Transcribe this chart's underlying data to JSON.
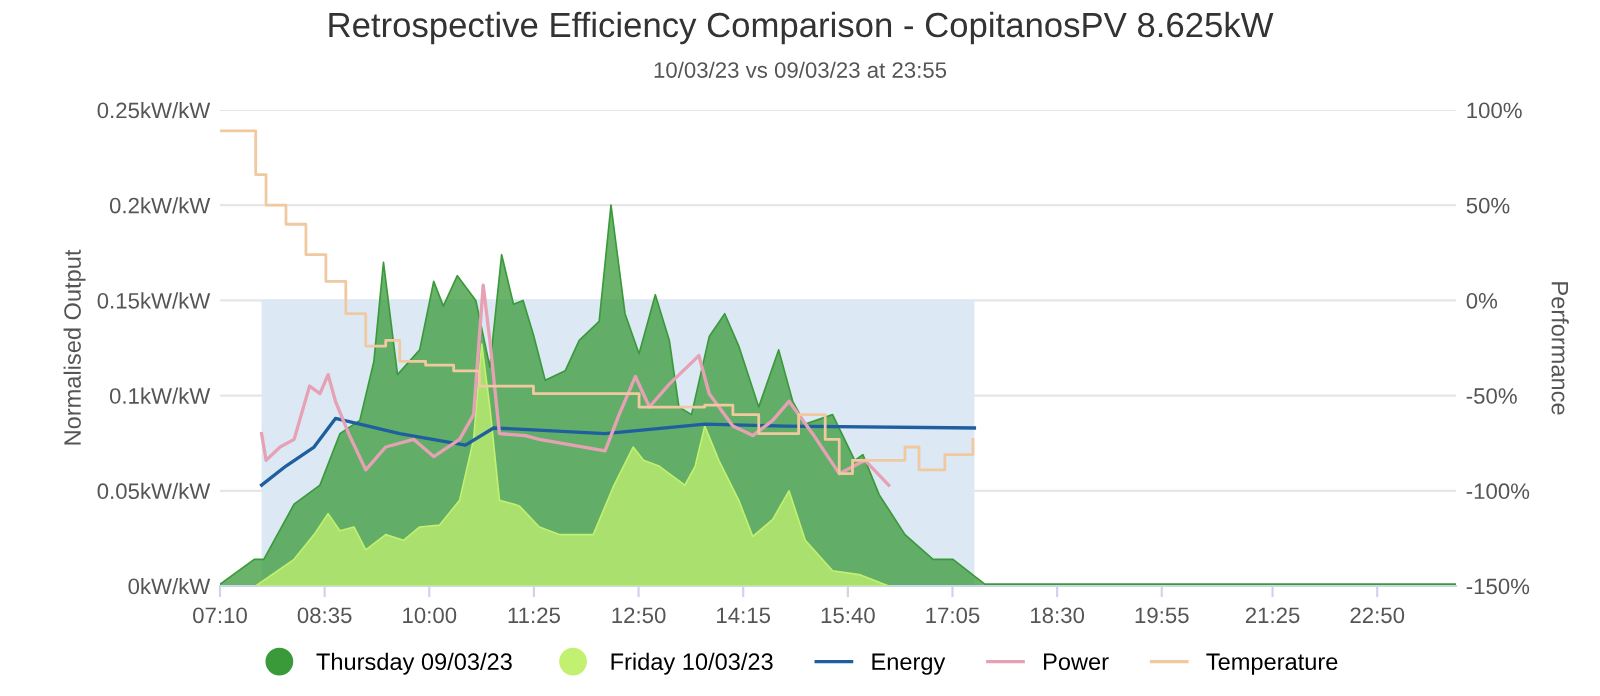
{
  "chart_data": {
    "type": "area",
    "title": "Retrospective Efficiency Comparison - CopitanosPV 8.625kW",
    "subtitle": "10/03/23 vs 09/03/23 at 23:55",
    "ylabel": "Normalised Output",
    "y2label": "Performance",
    "xlim": [
      7.1667,
      23.9
    ],
    "xticks": [
      {
        "value": 7.1667,
        "label": "07:10"
      },
      {
        "value": 8.5833,
        "label": "08:35"
      },
      {
        "value": 10,
        "label": "10:00"
      },
      {
        "value": 11.4167,
        "label": "11:25"
      },
      {
        "value": 12.8333,
        "label": "12:50"
      },
      {
        "value": 14.25,
        "label": "14:15"
      },
      {
        "value": 15.6667,
        "label": "15:40"
      },
      {
        "value": 17.0833,
        "label": "17:05"
      },
      {
        "value": 18.5,
        "label": "18:30"
      },
      {
        "value": 19.9167,
        "label": "19:55"
      },
      {
        "value": 21.4167,
        "label": "21:25"
      },
      {
        "value": 22.8333,
        "label": "22:50"
      }
    ],
    "ylim": [
      0,
      0.25
    ],
    "yticks": [
      {
        "value": 0,
        "label": "0kW/kW"
      },
      {
        "value": 0.05,
        "label": "0.05kW/kW"
      },
      {
        "value": 0.1,
        "label": "0.1kW/kW"
      },
      {
        "value": 0.15,
        "label": "0.15kW/kW"
      },
      {
        "value": 0.2,
        "label": "0.2kW/kW"
      },
      {
        "value": 0.25,
        "label": "0.25kW/kW"
      }
    ],
    "y2lim": [
      -150,
      100
    ],
    "y2ticks": [
      {
        "value": -150,
        "label": "-150%"
      },
      {
        "value": -100,
        "label": "-100%"
      },
      {
        "value": -50,
        "label": "-50%"
      },
      {
        "value": 0,
        "label": "0%"
      },
      {
        "value": 50,
        "label": "50%"
      },
      {
        "value": 100,
        "label": "100%"
      }
    ],
    "grid": "y",
    "legend": "bottom",
    "series": [
      {
        "color": "#dce9f5",
        "x": [
          7.73,
          8.06,
          8.44,
          8.73,
          9.06,
          9.6,
          10.49,
          10.87,
          11.41,
          12.38,
          13.73,
          14.81,
          17.38
        ],
        "values": [
          0.15,
          0.15,
          0.15,
          0.15,
          0.15,
          0.15,
          0.15,
          0.15,
          0.15,
          0.15,
          0.15,
          0.15,
          0.15
        ]
      },
      {
        "name": "Thursday 09/03/23",
        "color": "#3a9a3a",
        "x": [
          7.17,
          7.63,
          7.76,
          8.17,
          8.52,
          8.79,
          9.06,
          9.25,
          9.38,
          9.57,
          9.87,
          10.06,
          10.19,
          10.38,
          10.63,
          10.82,
          10.98,
          11.14,
          11.27,
          11.41,
          11.57,
          11.84,
          12.03,
          12.3,
          12.46,
          12.65,
          12.84,
          13.06,
          13.25,
          13.38,
          13.55,
          13.79,
          14.0,
          14.19,
          14.46,
          14.73,
          14.92,
          15.09,
          15.46,
          15.76,
          15.87,
          16.09,
          16.44,
          16.82,
          17.09,
          17.52,
          23.9
        ],
        "values": [
          0.001,
          0.014,
          0.014,
          0.043,
          0.053,
          0.08,
          0.087,
          0.118,
          0.17,
          0.111,
          0.124,
          0.16,
          0.147,
          0.163,
          0.15,
          0.115,
          0.174,
          0.148,
          0.15,
          0.132,
          0.108,
          0.113,
          0.129,
          0.139,
          0.2,
          0.143,
          0.122,
          0.153,
          0.129,
          0.094,
          0.09,
          0.131,
          0.143,
          0.126,
          0.094,
          0.124,
          0.097,
          0.085,
          0.09,
          0.066,
          0.069,
          0.048,
          0.027,
          0.014,
          0.014,
          0.001,
          0.001
        ]
      },
      {
        "name": "Friday 10/03/23",
        "color": "#c2f070",
        "x": [
          7.65,
          8.17,
          8.44,
          8.63,
          8.79,
          8.98,
          9.14,
          9.41,
          9.65,
          9.87,
          10.14,
          10.41,
          10.6,
          10.71,
          10.82,
          10.95,
          11.14,
          11.22,
          11.49,
          11.76,
          12.22,
          12.49,
          12.76,
          12.9,
          13.11,
          13.46,
          13.6,
          13.73,
          13.92,
          14.19,
          14.38,
          14.65,
          14.87,
          15.09,
          15.46,
          15.82,
          16.22
        ],
        "values": [
          0,
          0.014,
          0.027,
          0.038,
          0.029,
          0.031,
          0.019,
          0.027,
          0.024,
          0.031,
          0.032,
          0.045,
          0.077,
          0.127,
          0.094,
          0.045,
          0.043,
          0.042,
          0.031,
          0.027,
          0.027,
          0.052,
          0.073,
          0.066,
          0.063,
          0.053,
          0.063,
          0.084,
          0.066,
          0.045,
          0.026,
          0.035,
          0.05,
          0.024,
          0.008,
          0.006,
          0
        ]
      },
      {
        "name": "Energy",
        "type": "line",
        "color": "#1f5f9f",
        "x": [
          7.73,
          8.06,
          8.44,
          8.73,
          9.06,
          9.6,
          10.49,
          10.87,
          11.41,
          12.38,
          13.73,
          14.81,
          17.38
        ],
        "values": [
          0.053,
          0.063,
          0.073,
          0.088,
          0.085,
          0.08,
          0.074,
          0.083,
          0.082,
          0.08,
          0.085,
          0.084,
          0.083
        ]
      },
      {
        "name": "Power",
        "type": "line",
        "color": "#e6a2b4",
        "x": [
          7.73,
          7.79,
          7.98,
          8.17,
          8.38,
          8.52,
          8.63,
          8.73,
          8.92,
          9.14,
          9.41,
          9.79,
          10.06,
          10.41,
          10.6,
          10.73,
          10.82,
          10.95,
          11.3,
          11.49,
          12.38,
          12.57,
          12.79,
          12.98,
          13.25,
          13.65,
          13.79,
          14.11,
          14.38,
          14.65,
          14.87,
          15.19,
          15.55,
          15.9,
          16.22
        ],
        "values": [
          0.08,
          0.066,
          0.073,
          0.077,
          0.105,
          0.101,
          0.111,
          0.097,
          0.079,
          0.061,
          0.073,
          0.077,
          0.068,
          0.077,
          0.09,
          0.158,
          0.129,
          0.08,
          0.079,
          0.077,
          0.071,
          0.09,
          0.11,
          0.094,
          0.106,
          0.121,
          0.101,
          0.084,
          0.079,
          0.087,
          0.097,
          0.08,
          0.059,
          0.066,
          0.053
        ]
      },
      {
        "name": "Temperature",
        "type": "step",
        "color": "#f0c9a0",
        "x": [
          7.17,
          7.57,
          7.65,
          7.79,
          8.06,
          8.33,
          8.6,
          8.87,
          9.14,
          9.41,
          9.6,
          9.95,
          10.33,
          10.68,
          11.41,
          11.95,
          12.84,
          13.73,
          14.11,
          14.46,
          15.0,
          15.36,
          15.55,
          15.73,
          16.09,
          16.44,
          16.63,
          16.98,
          17.36
        ],
        "values": [
          0.239,
          0.239,
          0.216,
          0.2,
          0.19,
          0.174,
          0.16,
          0.143,
          0.126,
          0.129,
          0.118,
          0.116,
          0.113,
          0.105,
          0.101,
          0.101,
          0.094,
          0.095,
          0.09,
          0.08,
          0.09,
          0.077,
          0.059,
          0.066,
          0.066,
          0.073,
          0.061,
          0.069,
          0.077
        ]
      }
    ]
  }
}
